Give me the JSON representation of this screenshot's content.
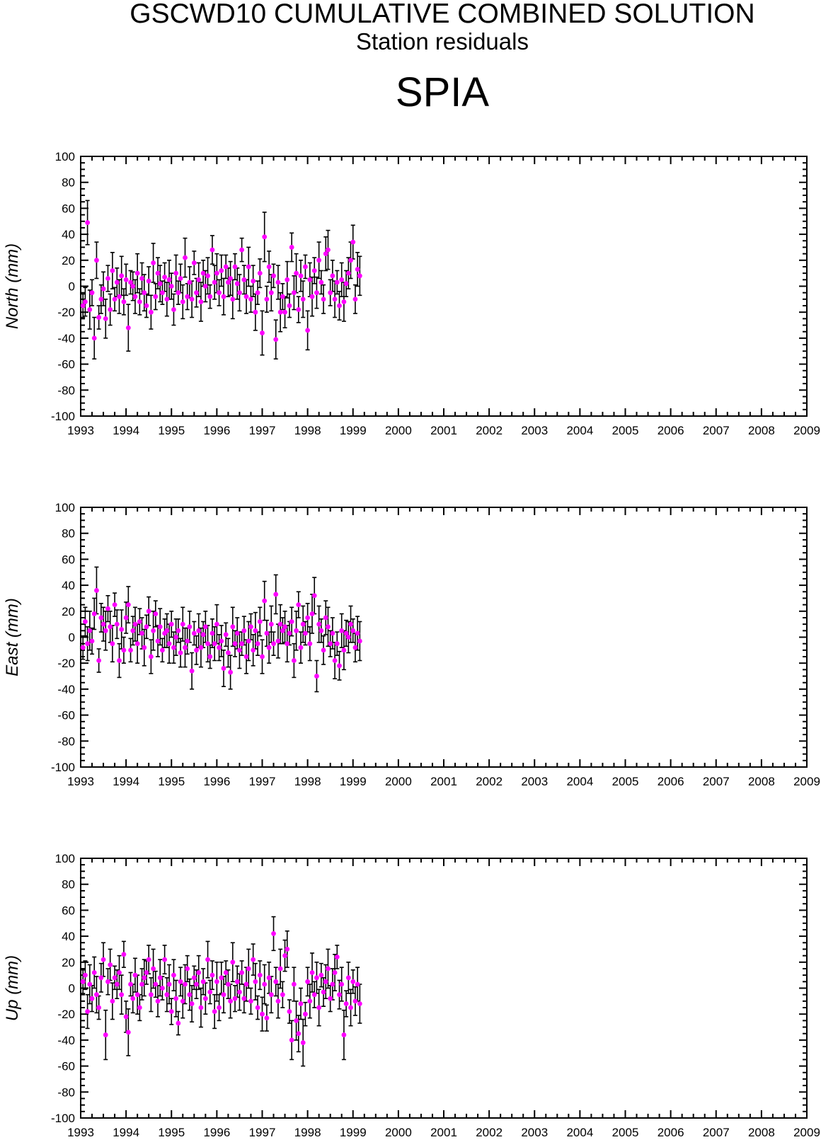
{
  "title": "GSCWD10 CUMULATIVE COMBINED SOLUTION",
  "subtitle": "Station residuals",
  "station": "SPIA",
  "colors": {
    "marker": "#ff00ff",
    "error_bar": "#000000",
    "frame": "#000000"
  },
  "chart_data": [
    {
      "type": "scatter",
      "panel": "north",
      "ylabel": "North (mm)",
      "xlim": [
        1993,
        2009
      ],
      "ylim": [
        -100,
        100
      ],
      "x_ticks": [
        1993,
        1994,
        1995,
        1996,
        1997,
        1998,
        1999,
        2000,
        2001,
        2002,
        2003,
        2004,
        2005,
        2006,
        2007,
        2008,
        2009
      ],
      "y_ticks": [
        -100,
        -80,
        -60,
        -40,
        -20,
        0,
        20,
        40,
        60,
        80,
        100
      ],
      "grid": false,
      "error_bars": true,
      "series": [
        {
          "x": [
            1993.05,
            1993.1,
            1993.15,
            1993.2,
            1993.25,
            1993.3,
            1993.35,
            1993.4,
            1993.45,
            1993.5,
            1993.55,
            1993.6,
            1993.65,
            1993.7,
            1993.75,
            1993.8,
            1993.85,
            1993.9,
            1993.95,
            1994.0,
            1994.05,
            1994.1,
            1994.15,
            1994.2,
            1994.25,
            1994.3,
            1994.35,
            1994.4,
            1994.45,
            1994.5,
            1994.55,
            1994.6,
            1994.65,
            1994.7,
            1994.75,
            1994.8,
            1994.85,
            1994.9,
            1994.95,
            1995.0,
            1995.05,
            1995.1,
            1995.15,
            1995.2,
            1995.25,
            1995.3,
            1995.35,
            1995.4,
            1995.45,
            1995.5,
            1995.55,
            1995.6,
            1995.65,
            1995.7,
            1995.75,
            1995.8,
            1995.85,
            1995.9,
            1995.95,
            1996.0,
            1996.05,
            1996.1,
            1996.15,
            1996.2,
            1996.25,
            1996.3,
            1996.35,
            1996.4,
            1996.45,
            1996.5,
            1996.55,
            1996.6,
            1996.65,
            1996.7,
            1996.75,
            1996.8,
            1996.85,
            1996.9,
            1996.95,
            1997.0,
            1997.05,
            1997.1,
            1997.15,
            1997.2,
            1997.25,
            1997.3,
            1997.35,
            1997.4,
            1997.45,
            1997.5,
            1997.55,
            1997.6,
            1997.65,
            1997.7,
            1997.75,
            1997.8,
            1997.85,
            1997.9,
            1997.95,
            1998.0,
            1998.05,
            1998.1,
            1998.15,
            1998.2,
            1998.25,
            1998.3,
            1998.35,
            1998.4,
            1998.45,
            1998.5,
            1998.55,
            1998.6,
            1998.65,
            1998.7,
            1998.75,
            1998.8,
            1998.85,
            1998.9,
            1998.95,
            1999.0,
            1999.05,
            1999.1,
            1999.15
          ],
          "y": [
            -15,
            -12,
            49,
            -18,
            -5,
            -40,
            20,
            -24,
            -10,
            -2,
            -25,
            6,
            -18,
            12,
            -10,
            3,
            -8,
            8,
            -12,
            5,
            -32,
            3,
            0,
            -8,
            10,
            -12,
            6,
            -5,
            -15,
            4,
            -20,
            18,
            -8,
            10,
            2,
            -5,
            7,
            -10,
            5,
            0,
            -18,
            10,
            -5,
            6,
            -12,
            22,
            -8,
            3,
            -10,
            18,
            -5,
            5,
            -12,
            10,
            0,
            8,
            -8,
            28,
            3,
            10,
            -5,
            12,
            -8,
            15,
            3,
            6,
            -10,
            15,
            2,
            -5,
            28,
            5,
            -8,
            15,
            -10,
            4,
            -20,
            -5,
            10,
            -36,
            38,
            -10,
            15,
            -5,
            8,
            -41,
            3,
            -20,
            -8,
            -20,
            5,
            -15,
            30,
            -5,
            10,
            -18,
            8,
            -10,
            15,
            -34,
            5,
            -8,
            12,
            -5,
            20,
            3,
            -10,
            25,
            28,
            -5,
            8,
            -10,
            3,
            -15,
            5,
            -12,
            2,
            10,
            20,
            34,
            -10,
            13,
            8
          ]
        }
      ]
    },
    {
      "type": "scatter",
      "panel": "east",
      "ylabel": "East (mm)",
      "xlim": [
        1993,
        2009
      ],
      "ylim": [
        -100,
        100
      ],
      "x_ticks": [
        1993,
        1994,
        1995,
        1996,
        1997,
        1998,
        1999,
        2000,
        2001,
        2002,
        2003,
        2004,
        2005,
        2006,
        2007,
        2008,
        2009
      ],
      "y_ticks": [
        -100,
        -80,
        -60,
        -40,
        -20,
        0,
        20,
        40,
        60,
        80,
        100
      ],
      "grid": false,
      "error_bars": true,
      "series": [
        {
          "x": [
            1993.05,
            1993.1,
            1993.15,
            1993.2,
            1993.25,
            1993.3,
            1993.35,
            1993.4,
            1993.45,
            1993.5,
            1993.55,
            1993.6,
            1993.65,
            1993.7,
            1993.75,
            1993.8,
            1993.85,
            1993.9,
            1993.95,
            1994.0,
            1994.05,
            1994.1,
            1994.15,
            1994.2,
            1994.25,
            1994.3,
            1994.35,
            1994.4,
            1994.45,
            1994.5,
            1994.55,
            1994.6,
            1994.65,
            1994.7,
            1994.75,
            1994.8,
            1994.85,
            1994.9,
            1994.95,
            1995.0,
            1995.05,
            1995.1,
            1995.15,
            1995.2,
            1995.25,
            1995.3,
            1995.35,
            1995.4,
            1995.45,
            1995.5,
            1995.55,
            1995.6,
            1995.65,
            1995.7,
            1995.75,
            1995.8,
            1995.85,
            1995.9,
            1995.95,
            1996.0,
            1996.05,
            1996.1,
            1996.15,
            1996.2,
            1996.25,
            1996.3,
            1996.35,
            1996.4,
            1996.45,
            1996.5,
            1996.55,
            1996.6,
            1996.65,
            1996.7,
            1996.75,
            1996.8,
            1996.85,
            1996.9,
            1996.95,
            1997.0,
            1997.05,
            1997.1,
            1997.15,
            1997.2,
            1997.25,
            1997.3,
            1997.35,
            1997.4,
            1997.45,
            1997.5,
            1997.55,
            1997.6,
            1997.65,
            1997.7,
            1997.75,
            1997.8,
            1997.85,
            1997.9,
            1997.95,
            1998.0,
            1998.05,
            1998.1,
            1998.15,
            1998.2,
            1998.25,
            1998.3,
            1998.35,
            1998.4,
            1998.45,
            1998.5,
            1998.55,
            1998.6,
            1998.65,
            1998.7,
            1998.75,
            1998.8,
            1998.85,
            1998.9,
            1998.95,
            1999.0,
            1999.05,
            1999.1,
            1999.15
          ],
          "y": [
            -8,
            12,
            -5,
            5,
            -3,
            18,
            36,
            -18,
            15,
            10,
            5,
            22,
            8,
            -5,
            25,
            10,
            -18,
            6,
            -10,
            15,
            25,
            -10,
            5,
            10,
            -5,
            12,
            3,
            -8,
            8,
            20,
            -15,
            5,
            18,
            -3,
            8,
            -10,
            3,
            5,
            -5,
            10,
            -8,
            0,
            5,
            -12,
            10,
            -8,
            -3,
            8,
            -26,
            3,
            -10,
            5,
            -8,
            2,
            8,
            -5,
            -15,
            3,
            -5,
            10,
            -8,
            -3,
            -24,
            2,
            -12,
            -27,
            8,
            -5,
            3,
            -10,
            -5,
            5,
            -15,
            -3,
            8,
            -10,
            5,
            -5,
            12,
            -15,
            28,
            3,
            -8,
            10,
            -5,
            33,
            -3,
            10,
            5,
            8,
            -5,
            3,
            12,
            -18,
            5,
            25,
            -8,
            10,
            3,
            15,
            -5,
            18,
            32,
            -30,
            10,
            5,
            -10,
            15,
            8,
            -5,
            3,
            -18,
            -5,
            -22,
            5,
            -10,
            3,
            0,
            10,
            5,
            -8,
            3,
            -3
          ]
        }
      ]
    },
    {
      "type": "scatter",
      "panel": "up",
      "ylabel": "Up (mm)",
      "xlim": [
        1993,
        2009
      ],
      "ylim": [
        -100,
        100
      ],
      "x_ticks": [
        1993,
        1994,
        1995,
        1996,
        1997,
        1998,
        1999,
        2000,
        2001,
        2002,
        2003,
        2004,
        2005,
        2006,
        2007,
        2008,
        2009
      ],
      "y_ticks": [
        -100,
        -80,
        -60,
        -40,
        -20,
        0,
        20,
        40,
        60,
        80,
        100
      ],
      "grid": false,
      "error_bars": true,
      "series": [
        {
          "x": [
            1993.05,
            1993.1,
            1993.15,
            1993.2,
            1993.25,
            1993.3,
            1993.35,
            1993.4,
            1993.45,
            1993.5,
            1993.55,
            1993.6,
            1993.65,
            1993.7,
            1993.75,
            1993.8,
            1993.85,
            1993.9,
            1993.95,
            1994.0,
            1994.05,
            1994.1,
            1994.15,
            1994.2,
            1994.25,
            1994.3,
            1994.35,
            1994.4,
            1994.45,
            1994.5,
            1994.55,
            1994.6,
            1994.65,
            1994.7,
            1994.75,
            1994.8,
            1994.85,
            1994.9,
            1994.95,
            1995.0,
            1995.05,
            1995.1,
            1995.15,
            1995.2,
            1995.25,
            1995.3,
            1995.35,
            1995.4,
            1995.45,
            1995.5,
            1995.55,
            1995.6,
            1995.65,
            1995.7,
            1995.75,
            1995.8,
            1995.85,
            1995.9,
            1995.95,
            1996.0,
            1996.05,
            1996.1,
            1996.15,
            1996.2,
            1996.25,
            1996.3,
            1996.35,
            1996.4,
            1996.45,
            1996.5,
            1996.55,
            1996.6,
            1996.65,
            1996.7,
            1996.75,
            1996.8,
            1996.85,
            1996.9,
            1996.95,
            1997.0,
            1997.05,
            1997.1,
            1997.15,
            1997.2,
            1997.25,
            1997.3,
            1997.35,
            1997.4,
            1997.45,
            1997.5,
            1997.55,
            1997.6,
            1997.65,
            1997.7,
            1997.75,
            1997.8,
            1997.85,
            1997.9,
            1997.95,
            1998.0,
            1998.05,
            1998.1,
            1998.15,
            1998.2,
            1998.25,
            1998.3,
            1998.35,
            1998.4,
            1998.45,
            1998.5,
            1998.55,
            1998.6,
            1998.65,
            1998.7,
            1998.75,
            1998.8,
            1998.85,
            1998.9,
            1998.95,
            1999.0,
            1999.05,
            1999.1,
            1999.15
          ],
          "y": [
            5,
            10,
            -18,
            3,
            -8,
            12,
            -5,
            -15,
            8,
            22,
            -36,
            5,
            18,
            -10,
            8,
            3,
            12,
            -5,
            26,
            -22,
            -34,
            3,
            -8,
            10,
            -5,
            -15,
            3,
            8,
            12,
            22,
            -5,
            15,
            3,
            -10,
            8,
            0,
            22,
            -5,
            3,
            -18,
            10,
            -8,
            -27,
            5,
            -10,
            3,
            15,
            -5,
            -12,
            8,
            3,
            12,
            -15,
            5,
            -8,
            22,
            -3,
            10,
            -18,
            5,
            -15,
            8,
            -5,
            12,
            3,
            -10,
            20,
            -8,
            5,
            -3,
            12,
            -8,
            3,
            15,
            -10,
            22,
            5,
            -15,
            10,
            -20,
            3,
            -23,
            8,
            -5,
            42,
            5,
            -10,
            15,
            -5,
            25,
            30,
            -18,
            -40,
            3,
            -25,
            -35,
            -12,
            -42,
            -20,
            5,
            -10,
            12,
            -5,
            8,
            -15,
            10,
            -3,
            5,
            15,
            -8,
            3,
            12,
            24,
            -5,
            3,
            -36,
            -12,
            8,
            -15,
            5,
            -10,
            3,
            -12
          ]
        }
      ]
    }
  ]
}
